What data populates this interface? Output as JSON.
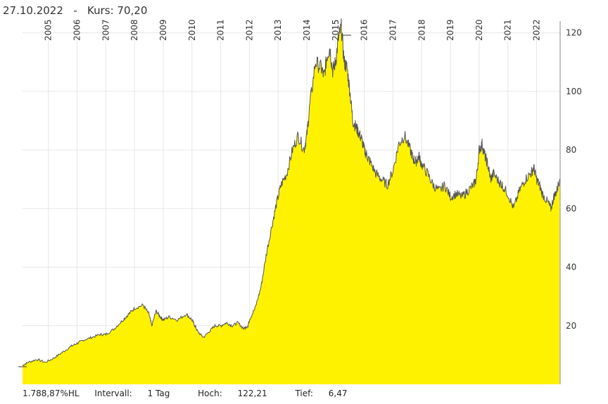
{
  "header": {
    "date": "27.10.2022",
    "separator": "-",
    "kurs_label": "Kurs:",
    "kurs_value": "70,20"
  },
  "footer": {
    "performance": "1.788,87%HL",
    "interval_label": "Intervall:",
    "interval_value": "1 Tag",
    "high_label": "Hoch:",
    "high_value": "122,21",
    "low_label": "Tief:",
    "low_value": "6,47"
  },
  "colors": {
    "fill": "#fff200",
    "line": "#555555",
    "grid": "#e6e6e6",
    "axis": "#888888"
  },
  "chart_data": {
    "type": "area",
    "title": "",
    "xlabel": "",
    "ylabel": "",
    "x_tick_labels": [
      "2005",
      "2006",
      "2007",
      "2008",
      "2009",
      "2010",
      "2011",
      "2012",
      "2013",
      "2014",
      "2015",
      "2016",
      "2017",
      "2018",
      "2019",
      "2020",
      "2021",
      "2022"
    ],
    "y_tick_labels": [
      "20",
      "40",
      "60",
      "80",
      "100",
      "120"
    ],
    "y_ticks": [
      20,
      40,
      60,
      80,
      100,
      120
    ],
    "xlim": [
      2004.1,
      2022.82
    ],
    "ylim": [
      0,
      124
    ],
    "grid": true,
    "series": [
      {
        "x": [
          2004.1,
          2004.3,
          2004.6,
          2004.9,
          2005.2,
          2005.5,
          2005.8,
          2006.0,
          2006.2,
          2006.5,
          2006.8,
          2007.0,
          2007.3,
          2007.6,
          2007.8,
          2008.0,
          2008.3,
          2008.5,
          2008.6,
          2008.75,
          2008.9,
          2009.0,
          2009.2,
          2009.5,
          2009.8,
          2010.0,
          2010.1,
          2010.2,
          2010.4,
          2010.6,
          2010.8,
          2011.0,
          2011.2,
          2011.4,
          2011.6,
          2011.8,
          2011.95,
          2012.0,
          2012.2,
          2012.4,
          2012.6,
          2012.8,
          2012.95,
          2013.1,
          2013.3,
          2013.5,
          2013.7,
          2013.9,
          2014.0,
          2014.1,
          2014.3,
          2014.5,
          2014.6,
          2014.7,
          2014.8,
          2014.9,
          2015.0,
          2015.1,
          2015.2,
          2015.3,
          2015.4,
          2015.5,
          2015.6,
          2015.7,
          2015.8,
          2015.9,
          2016.0,
          2016.1,
          2016.2,
          2016.4,
          2016.6,
          2016.8,
          2017.0,
          2017.2,
          2017.4,
          2017.6,
          2017.7,
          2017.8,
          2017.9,
          2018.0,
          2018.2,
          2018.4,
          2018.6,
          2018.8,
          2019.0,
          2019.2,
          2019.4,
          2019.6,
          2019.8,
          2019.9,
          2020.0,
          2020.1,
          2020.2,
          2020.3,
          2020.4,
          2020.5,
          2020.7,
          2020.8,
          2021.0,
          2021.2,
          2021.4,
          2021.6,
          2021.8,
          2021.9,
          2022.0,
          2022.1,
          2022.2,
          2022.4,
          2022.5,
          2022.6,
          2022.7,
          2022.8
        ],
        "y": [
          6.5,
          7.5,
          8.5,
          7.5,
          9,
          11,
          13,
          14,
          15,
          16,
          17,
          17,
          19,
          22,
          24,
          26,
          27,
          24,
          20,
          25,
          23,
          22,
          23,
          22,
          24,
          22,
          20,
          18,
          16,
          18,
          20,
          20,
          21,
          20,
          21,
          19,
          20,
          22,
          26,
          33,
          45,
          55,
          62,
          68,
          72,
          80,
          85,
          80,
          85,
          95,
          110,
          108,
          105,
          112,
          115,
          107,
          110,
          118,
          122,
          110,
          108,
          100,
          90,
          88,
          86,
          84,
          80,
          78,
          76,
          72,
          70,
          68,
          73,
          82,
          85,
          80,
          77,
          76,
          78,
          75,
          72,
          68,
          66,
          68,
          64,
          65,
          64,
          66,
          68,
          70,
          80,
          82,
          78,
          75,
          70,
          72,
          69,
          68,
          65,
          60,
          66,
          70,
          72,
          74,
          70,
          68,
          65,
          62,
          60,
          64,
          66,
          70
        ]
      }
    ]
  }
}
